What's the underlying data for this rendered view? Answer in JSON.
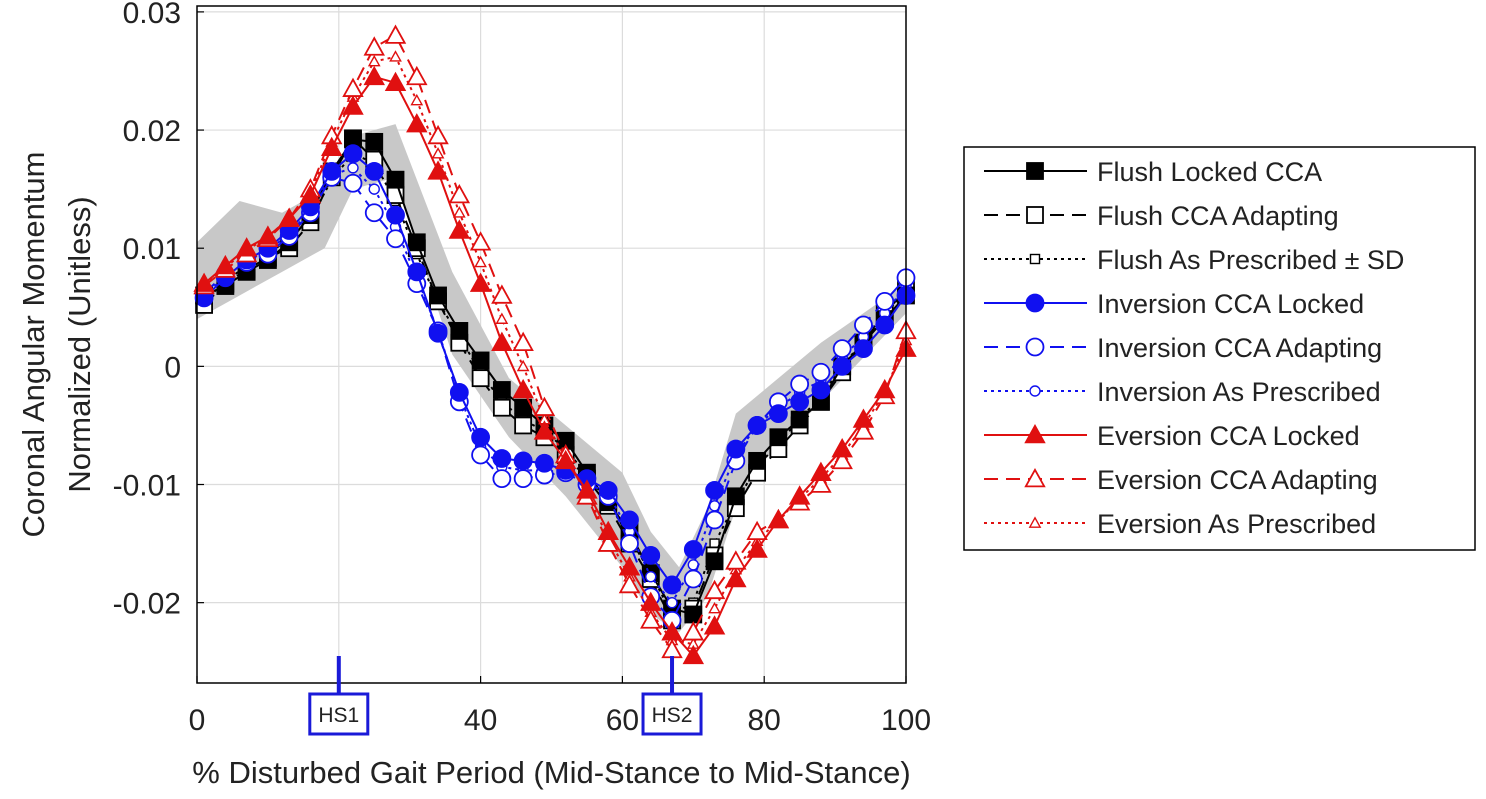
{
  "chart_data": {
    "type": "line",
    "xlabel": "% Disturbed Gait Period (Mid-Stance to Mid-Stance)",
    "ylabel_line1": "Coronal Angular Momentum",
    "ylabel_line2": "Normalized (Unitless)",
    "xlim": [
      0,
      100
    ],
    "ylim": [
      -0.0268,
      0.0305
    ],
    "grid": true,
    "xticks": [
      0,
      40,
      60,
      80,
      100
    ],
    "xtick_labels": [
      "0",
      "40",
      "60",
      "80",
      "100"
    ],
    "yticks": [
      -0.02,
      -0.01,
      0,
      0.01,
      0.02,
      0.03
    ],
    "ytick_labels": [
      "-0.02",
      "-0.01",
      "0",
      "0.01",
      "0.02",
      "0.03"
    ],
    "legend_position": "right",
    "markers": [
      {
        "label": "HS1",
        "x": 20
      },
      {
        "label": "HS2",
        "x": 67
      }
    ],
    "sd_band": {
      "name": "Flush As Prescribed ± SD",
      "x": [
        0,
        6,
        12,
        18,
        22,
        28,
        36,
        44,
        52,
        60,
        64,
        68,
        72,
        76,
        80,
        88,
        100
      ],
      "upper": [
        0.0105,
        0.014,
        0.013,
        0.015,
        0.0195,
        0.0205,
        0.008,
        -0.001,
        -0.005,
        -0.009,
        -0.014,
        -0.017,
        -0.012,
        -0.004,
        -0.002,
        0.002,
        0.007
      ],
      "lower": [
        0.004,
        0.006,
        0.008,
        0.01,
        0.015,
        0.016,
        0.001,
        -0.006,
        -0.011,
        -0.017,
        -0.021,
        -0.0225,
        -0.0195,
        -0.012,
        -0.008,
        -0.003,
        0.0045
      ]
    },
    "series": [
      {
        "name": "Flush Locked CCA",
        "color": "#000000",
        "dash": "solid",
        "marker": "square",
        "fill": "filled",
        "x": [
          1,
          4,
          7,
          10,
          13,
          16,
          19,
          22,
          25,
          28,
          31,
          34,
          37,
          40,
          43,
          46,
          49,
          52,
          55,
          58,
          61,
          64,
          67,
          70,
          73,
          76,
          79,
          82,
          85,
          88,
          91,
          94,
          97,
          100
        ],
        "values": [
          0.006,
          0.0068,
          0.008,
          0.009,
          0.0105,
          0.0128,
          0.0165,
          0.0192,
          0.019,
          0.0158,
          0.0105,
          0.006,
          0.003,
          0.0005,
          -0.002,
          -0.0035,
          -0.005,
          -0.0063,
          -0.009,
          -0.0115,
          -0.014,
          -0.0175,
          -0.0205,
          -0.021,
          -0.0165,
          -0.011,
          -0.008,
          -0.006,
          -0.0045,
          -0.003,
          0.0,
          0.002,
          0.004,
          0.006
        ]
      },
      {
        "name": "Flush CCA Adapting",
        "color": "#000000",
        "dash": "dashed",
        "marker": "square",
        "fill": "open",
        "x": [
          1,
          4,
          7,
          10,
          13,
          16,
          19,
          22,
          25,
          28,
          31,
          34,
          37,
          40,
          43,
          46,
          49,
          52,
          55,
          58,
          61,
          64,
          67,
          70,
          73,
          76,
          79,
          82,
          85,
          88,
          91,
          94,
          97,
          100
        ],
        "values": [
          0.0052,
          0.007,
          0.0082,
          0.0092,
          0.01,
          0.0122,
          0.016,
          0.0193,
          0.0175,
          0.0145,
          0.01,
          0.0055,
          0.002,
          -0.001,
          -0.0035,
          -0.005,
          -0.006,
          -0.0075,
          -0.0095,
          -0.0118,
          -0.015,
          -0.018,
          -0.0215,
          -0.0205,
          -0.016,
          -0.012,
          -0.009,
          -0.007,
          -0.005,
          -0.003,
          -0.0005,
          0.002,
          0.0045,
          0.0065
        ]
      },
      {
        "name": "Flush As Prescribed ± SD",
        "color": "#000000",
        "dash": "dotted",
        "marker": "square",
        "fill": "small",
        "x": [
          1,
          4,
          7,
          10,
          13,
          16,
          19,
          22,
          25,
          28,
          31,
          34,
          37,
          40,
          43,
          46,
          49,
          52,
          55,
          58,
          61,
          64,
          67,
          70,
          73,
          76,
          79,
          82,
          85,
          88,
          91,
          94,
          97,
          100
        ],
        "values": [
          0.0055,
          0.0072,
          0.0085,
          0.0095,
          0.0108,
          0.0125,
          0.0158,
          0.018,
          0.0172,
          0.014,
          0.0095,
          0.0055,
          0.0025,
          -0.0005,
          -0.003,
          -0.0045,
          -0.0055,
          -0.007,
          -0.0092,
          -0.0115,
          -0.0145,
          -0.0175,
          -0.021,
          -0.02,
          -0.015,
          -0.0115,
          -0.0085,
          -0.0065,
          -0.0045,
          -0.0025,
          0.0,
          0.0022,
          0.0045,
          0.0062
        ]
      },
      {
        "name": "Inversion CCA Locked",
        "color": "#1010f0",
        "dash": "solid",
        "marker": "circle",
        "fill": "filled",
        "x": [
          1,
          4,
          7,
          10,
          13,
          16,
          19,
          22,
          25,
          28,
          31,
          34,
          37,
          40,
          43,
          46,
          49,
          52,
          55,
          58,
          61,
          64,
          67,
          70,
          73,
          76,
          79,
          82,
          85,
          88,
          91,
          94,
          97,
          100
        ],
        "values": [
          0.0058,
          0.0075,
          0.009,
          0.01,
          0.0115,
          0.0135,
          0.0165,
          0.018,
          0.0165,
          0.0128,
          0.008,
          0.0028,
          -0.0022,
          -0.006,
          -0.0078,
          -0.008,
          -0.0082,
          -0.0088,
          -0.0095,
          -0.0105,
          -0.013,
          -0.016,
          -0.0185,
          -0.0155,
          -0.0105,
          -0.007,
          -0.005,
          -0.004,
          -0.003,
          -0.002,
          0.0,
          0.0015,
          0.0035,
          0.006
        ]
      },
      {
        "name": "Inversion CCA Adapting",
        "color": "#1010f0",
        "dash": "dashed",
        "marker": "circle",
        "fill": "open",
        "x": [
          1,
          4,
          7,
          10,
          13,
          16,
          19,
          22,
          25,
          28,
          31,
          34,
          37,
          40,
          43,
          46,
          49,
          52,
          55,
          58,
          61,
          64,
          67,
          70,
          73,
          76,
          79,
          82,
          85,
          88,
          91,
          94,
          97,
          100
        ],
        "values": [
          0.0062,
          0.0078,
          0.0088,
          0.0095,
          0.011,
          0.013,
          0.016,
          0.0155,
          0.013,
          0.0108,
          0.007,
          0.003,
          -0.003,
          -0.0075,
          -0.0095,
          -0.0095,
          -0.0092,
          -0.009,
          -0.01,
          -0.011,
          -0.015,
          -0.0195,
          -0.0215,
          -0.018,
          -0.013,
          -0.008,
          -0.005,
          -0.003,
          -0.0015,
          -0.0005,
          0.0015,
          0.0035,
          0.0055,
          0.0075
        ]
      },
      {
        "name": "Inversion As Prescribed",
        "color": "#1010f0",
        "dash": "dotted",
        "marker": "circle",
        "fill": "small",
        "x": [
          1,
          4,
          7,
          10,
          13,
          16,
          19,
          22,
          25,
          28,
          31,
          34,
          37,
          40,
          43,
          46,
          49,
          52,
          55,
          58,
          61,
          64,
          67,
          70,
          73,
          76,
          79,
          82,
          85,
          88,
          91,
          94,
          97,
          100
        ],
        "values": [
          0.006,
          0.0076,
          0.0089,
          0.0098,
          0.0112,
          0.0132,
          0.0162,
          0.0168,
          0.015,
          0.0118,
          0.0075,
          0.003,
          -0.0025,
          -0.0068,
          -0.0085,
          -0.0088,
          -0.0088,
          -0.009,
          -0.0098,
          -0.0108,
          -0.014,
          -0.0178,
          -0.02,
          -0.0168,
          -0.0118,
          -0.0075,
          -0.005,
          -0.0035,
          -0.0022,
          -0.0012,
          0.0008,
          0.0025,
          0.0045,
          0.0068
        ]
      },
      {
        "name": "Eversion CCA Locked",
        "color": "#e01010",
        "dash": "solid",
        "marker": "triangle",
        "fill": "filled",
        "x": [
          1,
          4,
          7,
          10,
          13,
          16,
          19,
          22,
          25,
          28,
          31,
          34,
          37,
          40,
          43,
          46,
          49,
          52,
          55,
          58,
          61,
          64,
          67,
          70,
          73,
          76,
          79,
          82,
          85,
          88,
          91,
          94,
          97,
          100
        ],
        "values": [
          0.007,
          0.0085,
          0.01,
          0.011,
          0.0125,
          0.0145,
          0.0185,
          0.022,
          0.0245,
          0.024,
          0.0205,
          0.0165,
          0.0115,
          0.007,
          0.002,
          -0.002,
          -0.0055,
          -0.008,
          -0.0105,
          -0.014,
          -0.017,
          -0.02,
          -0.0225,
          -0.0245,
          -0.022,
          -0.018,
          -0.0155,
          -0.013,
          -0.011,
          -0.009,
          -0.007,
          -0.0045,
          -0.002,
          0.0015
        ]
      },
      {
        "name": "Eversion CCA Adapting",
        "color": "#e01010",
        "dash": "dashed",
        "marker": "triangle",
        "fill": "open",
        "x": [
          1,
          4,
          7,
          10,
          13,
          16,
          19,
          22,
          25,
          28,
          31,
          34,
          37,
          40,
          43,
          46,
          49,
          52,
          55,
          58,
          61,
          64,
          67,
          70,
          73,
          76,
          79,
          82,
          85,
          88,
          91,
          94,
          97,
          100
        ],
        "values": [
          0.0068,
          0.0082,
          0.0095,
          0.0108,
          0.0125,
          0.015,
          0.0195,
          0.0235,
          0.027,
          0.028,
          0.0245,
          0.0195,
          0.0145,
          0.0105,
          0.006,
          0.002,
          -0.0035,
          -0.0075,
          -0.011,
          -0.015,
          -0.0185,
          -0.0215,
          -0.024,
          -0.0225,
          -0.019,
          -0.0165,
          -0.014,
          -0.013,
          -0.0115,
          -0.01,
          -0.008,
          -0.0055,
          -0.0025,
          0.003
        ]
      },
      {
        "name": "Eversion As Prescribed",
        "color": "#e01010",
        "dash": "dotted",
        "marker": "triangle",
        "fill": "small",
        "x": [
          1,
          4,
          7,
          10,
          13,
          16,
          19,
          22,
          25,
          28,
          31,
          34,
          37,
          40,
          43,
          46,
          49,
          52,
          55,
          58,
          61,
          64,
          67,
          70,
          73,
          76,
          79,
          82,
          85,
          88,
          91,
          94,
          97,
          100
        ],
        "values": [
          0.0069,
          0.0084,
          0.0098,
          0.011,
          0.0125,
          0.0148,
          0.019,
          0.0228,
          0.0258,
          0.0262,
          0.0225,
          0.018,
          0.013,
          0.0088,
          0.004,
          0.0,
          -0.0045,
          -0.0078,
          -0.0108,
          -0.0145,
          -0.0178,
          -0.0208,
          -0.0232,
          -0.0235,
          -0.0205,
          -0.0172,
          -0.0148,
          -0.013,
          -0.0112,
          -0.0095,
          -0.0075,
          -0.005,
          -0.0022,
          0.0022
        ]
      }
    ]
  }
}
